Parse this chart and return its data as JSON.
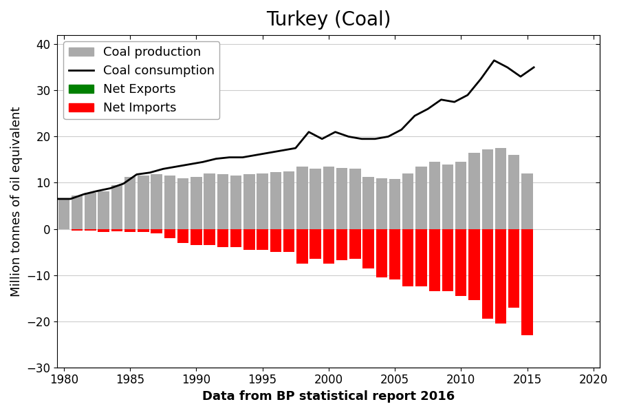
{
  "title": "Turkey (Coal)",
  "xlabel": "Data from BP statistical report 2016",
  "ylabel": "Million tonnes of oil equivalent",
  "years": [
    1980,
    1981,
    1982,
    1983,
    1984,
    1985,
    1986,
    1987,
    1988,
    1989,
    1990,
    1991,
    1992,
    1993,
    1994,
    1995,
    1996,
    1997,
    1998,
    1999,
    2000,
    2001,
    2002,
    2003,
    2004,
    2005,
    2006,
    2007,
    2008,
    2009,
    2010,
    2011,
    2012,
    2013,
    2014,
    2015
  ],
  "coal_production": [
    6.3,
    7.2,
    7.8,
    8.2,
    9.5,
    11.2,
    11.5,
    11.8,
    11.5,
    11.0,
    11.2,
    12.0,
    11.8,
    11.5,
    11.8,
    12.0,
    12.3,
    12.5,
    13.5,
    13.0,
    13.5,
    13.2,
    13.0,
    11.2,
    11.0,
    10.8,
    12.0,
    13.5,
    14.5,
    14.0,
    14.5,
    16.5,
    17.2,
    17.5,
    16.0,
    12.0
  ],
  "coal_consumption": [
    6.5,
    7.5,
    8.2,
    8.8,
    9.8,
    11.8,
    12.2,
    13.0,
    13.5,
    14.0,
    14.5,
    15.2,
    15.5,
    15.5,
    16.0,
    16.5,
    17.0,
    17.5,
    21.0,
    19.5,
    21.0,
    20.0,
    19.5,
    19.5,
    20.0,
    21.5,
    24.5,
    26.0,
    28.0,
    27.5,
    29.0,
    32.5,
    36.5,
    35.0,
    33.0,
    35.0
  ],
  "net_imports": [
    0.0,
    -0.3,
    -0.4,
    -0.6,
    -0.5,
    -0.6,
    -0.7,
    -1.0,
    -2.0,
    -3.0,
    -3.5,
    -3.5,
    -4.0,
    -4.0,
    -4.5,
    -4.5,
    -5.0,
    -5.0,
    -7.5,
    -6.5,
    -7.5,
    -6.8,
    -6.5,
    -8.5,
    -10.5,
    -11.0,
    -12.5,
    -12.5,
    -13.5,
    -13.5,
    -14.5,
    -15.5,
    -19.5,
    -20.5,
    -17.0,
    -23.0
  ],
  "ylim": [
    -30,
    42
  ],
  "xlim": [
    1979.5,
    2020.5
  ],
  "yticks": [
    -30,
    -20,
    -10,
    0,
    10,
    20,
    30,
    40
  ],
  "xticks": [
    1980,
    1985,
    1990,
    1995,
    2000,
    2005,
    2010,
    2015,
    2020
  ],
  "production_color": "#aaaaaa",
  "imports_color": "#ff0000",
  "exports_color": "#008000",
  "consumption_color": "#000000",
  "title_fontsize": 20,
  "label_fontsize": 13,
  "tick_fontsize": 12,
  "bar_width": 0.85
}
